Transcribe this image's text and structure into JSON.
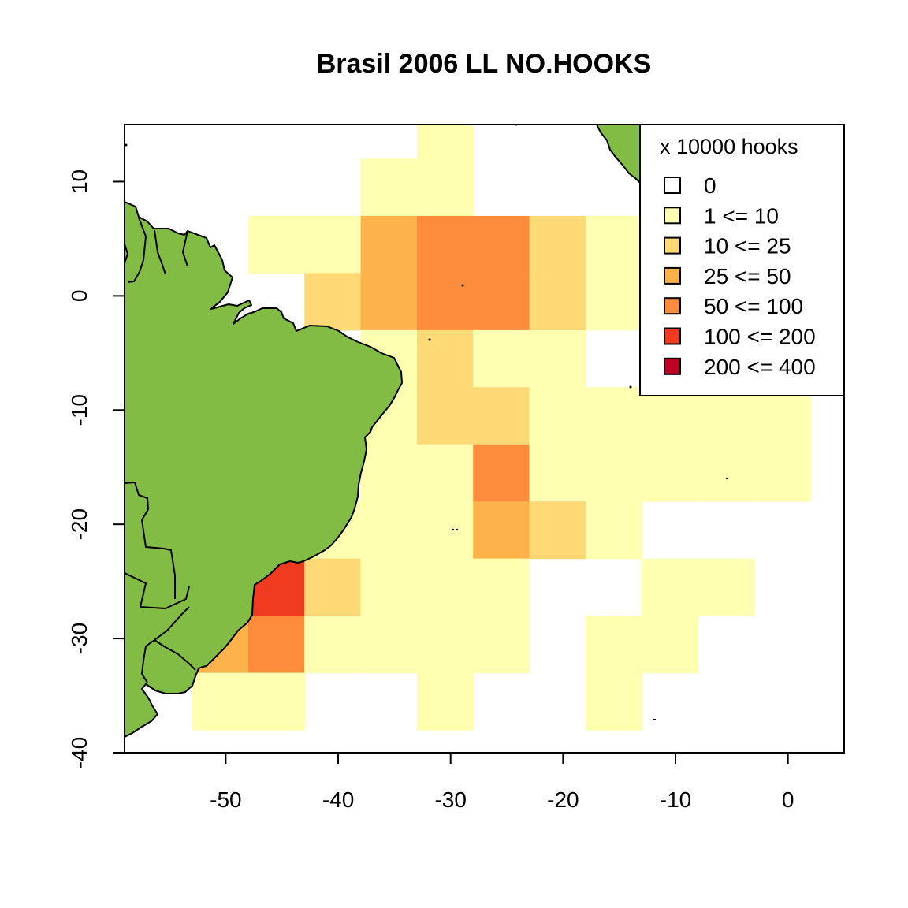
{
  "title": "Brasil 2006 LL NO.HOOKS",
  "map": {
    "x_range": [
      -59,
      5
    ],
    "y_range": [
      -40,
      15
    ],
    "x_ticks": [
      -50,
      -40,
      -30,
      -20,
      -10,
      0
    ],
    "y_ticks": [
      -40,
      -30,
      -20,
      -10,
      0,
      10
    ],
    "land_color": "#82bc45",
    "coastline_color": "#000000"
  },
  "legend": {
    "title": "x 10000 hooks",
    "position": "top-right",
    "items": [
      {
        "label": "0",
        "color": "#ffffff"
      },
      {
        "label": "1 <= 10",
        "color": "#ffffb2"
      },
      {
        "label": "10 <= 25",
        "color": "#fed976"
      },
      {
        "label": "25 <= 50",
        "color": "#feb24c"
      },
      {
        "label": "50 <= 100",
        "color": "#fd8d3c"
      },
      {
        "label": "100 <= 200",
        "color": "#f03b20"
      },
      {
        "label": "200 <= 400",
        "color": "#bd0026"
      }
    ]
  },
  "chart_data": {
    "type": "heatmap",
    "title": "Brasil 2006 LL NO.HOOKS",
    "xlabel": "",
    "ylabel": "",
    "xlim": [
      -59,
      5
    ],
    "ylim": [
      -40,
      15
    ],
    "cell_size_deg": 5,
    "legend_title": "x 10000 hooks",
    "cells": [
      {
        "lon": [
          -33,
          -28
        ],
        "lat": [
          12,
          17
        ],
        "class": "1 <= 10"
      },
      {
        "lon": [
          -38,
          -33
        ],
        "lat": [
          7,
          12
        ],
        "class": "1 <= 10"
      },
      {
        "lon": [
          -33,
          -28
        ],
        "lat": [
          7,
          12
        ],
        "class": "1 <= 10"
      },
      {
        "lon": [
          -48,
          -43
        ],
        "lat": [
          2,
          7
        ],
        "class": "1 <= 10"
      },
      {
        "lon": [
          -43,
          -38
        ],
        "lat": [
          2,
          7
        ],
        "class": "1 <= 10"
      },
      {
        "lon": [
          -38,
          -33
        ],
        "lat": [
          2,
          7
        ],
        "class": "25 <= 50"
      },
      {
        "lon": [
          -33,
          -28
        ],
        "lat": [
          2,
          7
        ],
        "class": "50 <= 100"
      },
      {
        "lon": [
          -28,
          -23
        ],
        "lat": [
          2,
          7
        ],
        "class": "50 <= 100"
      },
      {
        "lon": [
          -23,
          -18
        ],
        "lat": [
          2,
          7
        ],
        "class": "10 <= 25"
      },
      {
        "lon": [
          -18,
          -13
        ],
        "lat": [
          2,
          7
        ],
        "class": "1 <= 10"
      },
      {
        "lon": [
          -43,
          -38
        ],
        "lat": [
          -3,
          2
        ],
        "class": "10 <= 25"
      },
      {
        "lon": [
          -38,
          -33
        ],
        "lat": [
          -3,
          2
        ],
        "class": "25 <= 50"
      },
      {
        "lon": [
          -33,
          -28
        ],
        "lat": [
          -3,
          2
        ],
        "class": "50 <= 100"
      },
      {
        "lon": [
          -28,
          -23
        ],
        "lat": [
          -3,
          2
        ],
        "class": "50 <= 100"
      },
      {
        "lon": [
          -23,
          -18
        ],
        "lat": [
          -3,
          2
        ],
        "class": "10 <= 25"
      },
      {
        "lon": [
          -18,
          -13
        ],
        "lat": [
          -3,
          2
        ],
        "class": "1 <= 10"
      },
      {
        "lon": [
          -38,
          -33
        ],
        "lat": [
          -8,
          -3
        ],
        "class": "1 <= 10"
      },
      {
        "lon": [
          -33,
          -28
        ],
        "lat": [
          -8,
          -3
        ],
        "class": "10 <= 25"
      },
      {
        "lon": [
          -28,
          -23
        ],
        "lat": [
          -8,
          -3
        ],
        "class": "1 <= 10"
      },
      {
        "lon": [
          -23,
          -18
        ],
        "lat": [
          -8,
          -3
        ],
        "class": "1 <= 10"
      },
      {
        "lon": [
          -38,
          -33
        ],
        "lat": [
          -13,
          -8
        ],
        "class": "1 <= 10"
      },
      {
        "lon": [
          -33,
          -28
        ],
        "lat": [
          -13,
          -8
        ],
        "class": "10 <= 25"
      },
      {
        "lon": [
          -28,
          -23
        ],
        "lat": [
          -13,
          -8
        ],
        "class": "10 <= 25"
      },
      {
        "lon": [
          -23,
          -18
        ],
        "lat": [
          -13,
          -8
        ],
        "class": "1 <= 10"
      },
      {
        "lon": [
          -18,
          -13
        ],
        "lat": [
          -13,
          -8
        ],
        "class": "1 <= 10"
      },
      {
        "lon": [
          -13,
          -8
        ],
        "lat": [
          -13,
          -8
        ],
        "class": "1 <= 10"
      },
      {
        "lon": [
          -8,
          -3
        ],
        "lat": [
          -13,
          -8
        ],
        "class": "1 <= 10"
      },
      {
        "lon": [
          -3,
          2
        ],
        "lat": [
          -13,
          -8
        ],
        "class": "1 <= 10"
      },
      {
        "lon": [
          -38,
          -33
        ],
        "lat": [
          -18,
          -13
        ],
        "class": "1 <= 10"
      },
      {
        "lon": [
          -33,
          -28
        ],
        "lat": [
          -18,
          -13
        ],
        "class": "1 <= 10"
      },
      {
        "lon": [
          -28,
          -23
        ],
        "lat": [
          -18,
          -13
        ],
        "class": "50 <= 100"
      },
      {
        "lon": [
          -23,
          -18
        ],
        "lat": [
          -18,
          -13
        ],
        "class": "1 <= 10"
      },
      {
        "lon": [
          -18,
          -13
        ],
        "lat": [
          -18,
          -13
        ],
        "class": "1 <= 10"
      },
      {
        "lon": [
          -13,
          -8
        ],
        "lat": [
          -18,
          -13
        ],
        "class": "1 <= 10"
      },
      {
        "lon": [
          -8,
          -3
        ],
        "lat": [
          -18,
          -13
        ],
        "class": "1 <= 10"
      },
      {
        "lon": [
          -3,
          2
        ],
        "lat": [
          -18,
          -13
        ],
        "class": "1 <= 10"
      },
      {
        "lon": [
          -43,
          -38
        ],
        "lat": [
          -23,
          -18
        ],
        "class": "1 <= 10"
      },
      {
        "lon": [
          -38,
          -33
        ],
        "lat": [
          -23,
          -18
        ],
        "class": "1 <= 10"
      },
      {
        "lon": [
          -33,
          -28
        ],
        "lat": [
          -23,
          -18
        ],
        "class": "1 <= 10"
      },
      {
        "lon": [
          -28,
          -23
        ],
        "lat": [
          -23,
          -18
        ],
        "class": "25 <= 50"
      },
      {
        "lon": [
          -23,
          -18
        ],
        "lat": [
          -23,
          -18
        ],
        "class": "10 <= 25"
      },
      {
        "lon": [
          -18,
          -13
        ],
        "lat": [
          -23,
          -18
        ],
        "class": "1 <= 10"
      },
      {
        "lon": [
          -48,
          -43
        ],
        "lat": [
          -28,
          -23
        ],
        "class": "100 <= 200"
      },
      {
        "lon": [
          -43,
          -38
        ],
        "lat": [
          -28,
          -23
        ],
        "class": "10 <= 25"
      },
      {
        "lon": [
          -38,
          -33
        ],
        "lat": [
          -28,
          -23
        ],
        "class": "1 <= 10"
      },
      {
        "lon": [
          -33,
          -28
        ],
        "lat": [
          -28,
          -23
        ],
        "class": "1 <= 10"
      },
      {
        "lon": [
          -28,
          -23
        ],
        "lat": [
          -28,
          -23
        ],
        "class": "1 <= 10"
      },
      {
        "lon": [
          -13,
          -8
        ],
        "lat": [
          -28,
          -23
        ],
        "class": "1 <= 10"
      },
      {
        "lon": [
          -8,
          -3
        ],
        "lat": [
          -28,
          -23
        ],
        "class": "1 <= 10"
      },
      {
        "lon": [
          -53,
          -48
        ],
        "lat": [
          -33,
          -28
        ],
        "class": "25 <= 50"
      },
      {
        "lon": [
          -48,
          -43
        ],
        "lat": [
          -33,
          -28
        ],
        "class": "50 <= 100"
      },
      {
        "lon": [
          -43,
          -38
        ],
        "lat": [
          -33,
          -28
        ],
        "class": "1 <= 10"
      },
      {
        "lon": [
          -38,
          -33
        ],
        "lat": [
          -33,
          -28
        ],
        "class": "1 <= 10"
      },
      {
        "lon": [
          -33,
          -28
        ],
        "lat": [
          -33,
          -28
        ],
        "class": "1 <= 10"
      },
      {
        "lon": [
          -28,
          -23
        ],
        "lat": [
          -33,
          -28
        ],
        "class": "1 <= 10"
      },
      {
        "lon": [
          -18,
          -13
        ],
        "lat": [
          -33,
          -28
        ],
        "class": "1 <= 10"
      },
      {
        "lon": [
          -13,
          -8
        ],
        "lat": [
          -33,
          -28
        ],
        "class": "1 <= 10"
      },
      {
        "lon": [
          -53,
          -48
        ],
        "lat": [
          -38,
          -33
        ],
        "class": "1 <= 10"
      },
      {
        "lon": [
          -48,
          -43
        ],
        "lat": [
          -38,
          -33
        ],
        "class": "1 <= 10"
      },
      {
        "lon": [
          -33,
          -28
        ],
        "lat": [
          -38,
          -33
        ],
        "class": "1 <= 10"
      },
      {
        "lon": [
          -18,
          -13
        ],
        "lat": [
          -38,
          -33
        ],
        "class": "1 <= 10"
      }
    ]
  }
}
